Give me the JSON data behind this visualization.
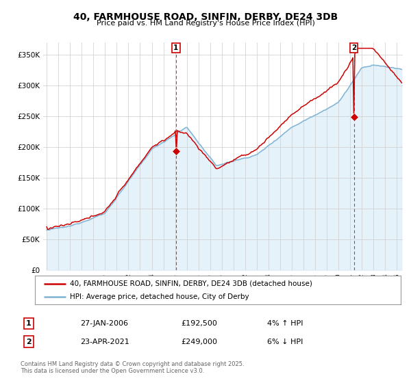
{
  "title1": "40, FARMHOUSE ROAD, SINFIN, DERBY, DE24 3DB",
  "title2": "Price paid vs. HM Land Registry's House Price Index (HPI)",
  "ylabel_ticks": [
    "£0",
    "£50K",
    "£100K",
    "£150K",
    "£200K",
    "£250K",
    "£300K",
    "£350K"
  ],
  "ytick_values": [
    0,
    50000,
    100000,
    150000,
    200000,
    250000,
    300000,
    350000
  ],
  "ylim": [
    0,
    370000
  ],
  "xlim_start": 1994.7,
  "xlim_end": 2025.5,
  "marker1_x": 2006.07,
  "marker1_y": 192500,
  "marker2_x": 2021.31,
  "marker2_y": 249000,
  "legend_line1": "40, FARMHOUSE ROAD, SINFIN, DERBY, DE24 3DB (detached house)",
  "legend_line2": "HPI: Average price, detached house, City of Derby",
  "table_row1": [
    "1",
    "27-JAN-2006",
    "£192,500",
    "4% ↑ HPI"
  ],
  "table_row2": [
    "2",
    "23-APR-2021",
    "£249,000",
    "6% ↓ HPI"
  ],
  "footer": "Contains HM Land Registry data © Crown copyright and database right 2025.\nThis data is licensed under the Open Government Licence v3.0.",
  "color_red": "#cc0000",
  "color_blue": "#7fb3d3",
  "color_blue_fill": "#d6eaf8",
  "color_grid": "#cccccc",
  "color_bg": "#ffffff"
}
